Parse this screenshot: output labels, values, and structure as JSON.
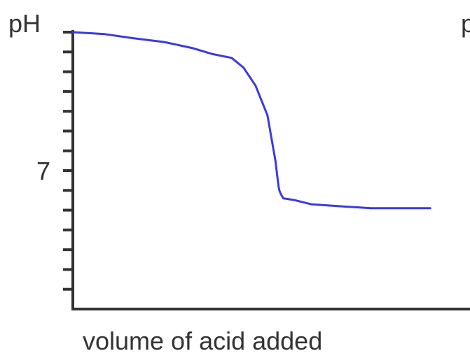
{
  "chart_data": {
    "type": "line",
    "ylabel": "pH",
    "xlabel": "volume of acid added",
    "cut_off_label": "p",
    "y_tick_labels": [
      {
        "value": 7,
        "label": "7"
      }
    ],
    "xlim": [
      0,
      100
    ],
    "ylim": [
      0,
      14
    ],
    "y_tick_values": [
      1,
      2,
      3,
      4,
      5,
      6,
      7,
      8,
      9,
      10,
      11,
      12,
      13,
      14
    ],
    "grid": false,
    "series": [
      {
        "color": "#3b3bdc",
        "x": [
          0,
          8,
          15,
          23,
          30,
          35,
          40,
          43,
          46,
          49,
          51,
          51.6,
          51.8,
          52,
          52.4,
          53,
          56,
          60,
          67,
          75,
          85,
          90
        ],
        "y": [
          14,
          13.9,
          13.7,
          13.5,
          13.2,
          12.9,
          12.7,
          12.2,
          11.3,
          9.8,
          7.5,
          6.5,
          6.2,
          6.0,
          5.8,
          5.6,
          5.5,
          5.3,
          5.2,
          5.1,
          5.1,
          5.1
        ]
      }
    ]
  }
}
